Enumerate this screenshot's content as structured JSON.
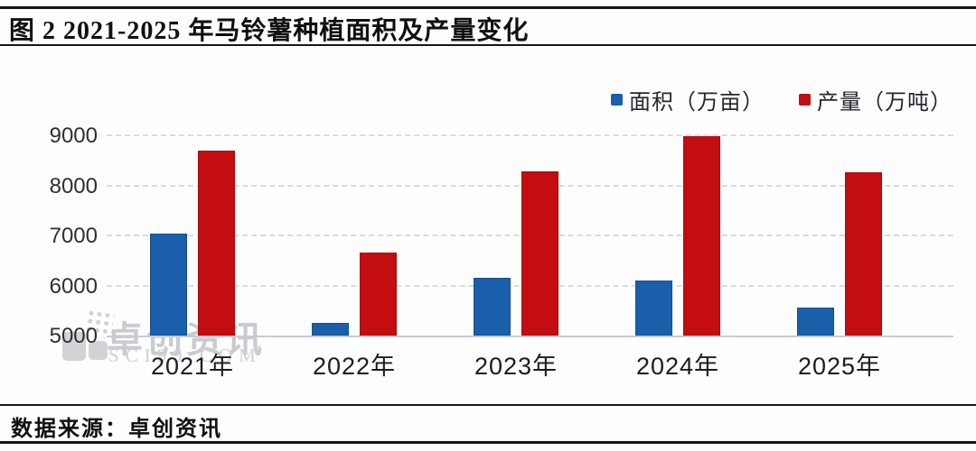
{
  "header": {
    "title": "图 2 2021-2025 年马铃薯种植面积及产量变化"
  },
  "footer": {
    "source_label": "数据来源：卓创资讯"
  },
  "watermark": {
    "brand": "卓创资讯",
    "domain": "SCI99.COM"
  },
  "legend": {
    "items": [
      {
        "label": "面积（万亩）",
        "color": "#1a5fa9"
      },
      {
        "label": "产量（万吨）",
        "color": "#c30d10"
      }
    ]
  },
  "chart_data": {
    "type": "bar",
    "title": "图 2 2021-2025 年马铃薯种植面积及产量变化",
    "categories": [
      "2021年",
      "2022年",
      "2023年",
      "2024年",
      "2025年"
    ],
    "series": [
      {
        "name": "面积（万亩）",
        "color": "#1a5fa9",
        "values": [
          7030,
          5250,
          6150,
          6100,
          5550
        ]
      },
      {
        "name": "产量（万吨）",
        "color": "#c30d10",
        "values": [
          8700,
          6650,
          8280,
          8980,
          8270
        ]
      }
    ],
    "xlabel": "",
    "ylabel": "",
    "ylim": [
      5000,
      9000
    ],
    "yticks": [
      5000,
      6000,
      7000,
      8000,
      9000
    ],
    "grid": "horizontal-dashed",
    "legend_position": "top-right",
    "baseline_value": 5000
  }
}
